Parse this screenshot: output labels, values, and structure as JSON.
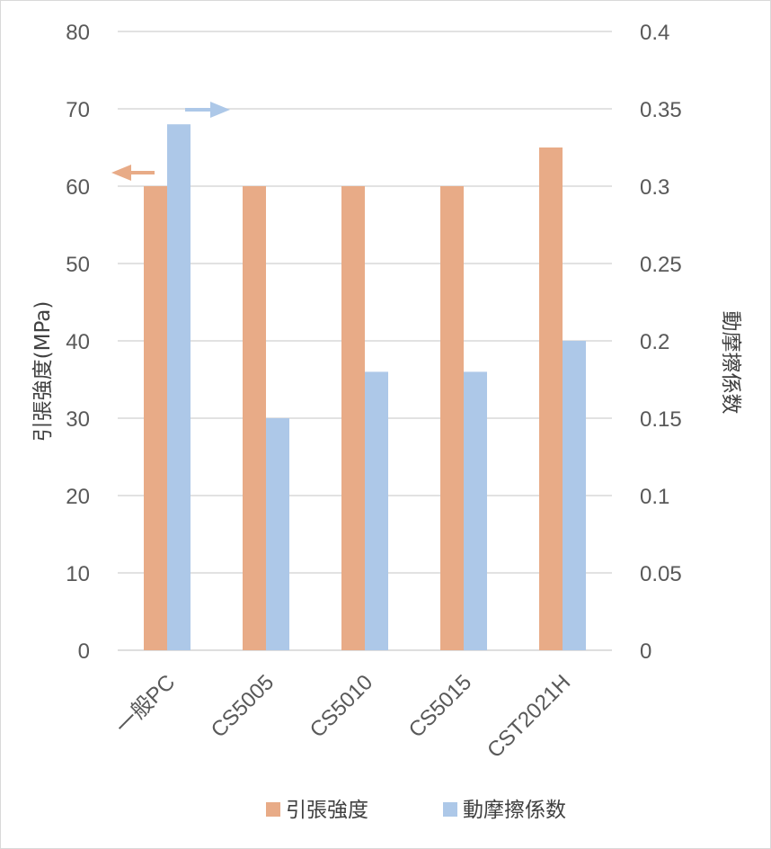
{
  "chart_data": {
    "type": "bar",
    "categories": [
      "一般PC",
      "CS5005",
      "CS5010",
      "CS5015",
      "CST2021H"
    ],
    "series": [
      {
        "name": "引張強度",
        "axis": "left",
        "color": "#E8AB87",
        "values": [
          60,
          60,
          60,
          60,
          65
        ]
      },
      {
        "name": "動摩擦係数",
        "axis": "right",
        "color": "#ADC8E8",
        "values": [
          0.34,
          0.15,
          0.18,
          0.18,
          0.2
        ]
      }
    ],
    "ylabel": "引張強度(MPa)",
    "y2label": "動摩擦係数",
    "ylim": [
      0,
      80
    ],
    "y2lim": [
      0,
      0.4
    ],
    "yticks": [
      "0",
      "10",
      "20",
      "30",
      "40",
      "50",
      "60",
      "70",
      "80"
    ],
    "y2ticks": [
      "0",
      "0.05",
      "0.1",
      "0.15",
      "0.2",
      "0.25",
      "0.3",
      "0.35",
      "0.4"
    ],
    "grid": true,
    "legend": "bottom",
    "annotations": [
      {
        "type": "arrow",
        "direction": "left",
        "series": "引張強度",
        "color": "#E8AB87"
      },
      {
        "type": "arrow",
        "direction": "right",
        "series": "動摩擦係数",
        "color": "#ADC8E8"
      }
    ]
  }
}
